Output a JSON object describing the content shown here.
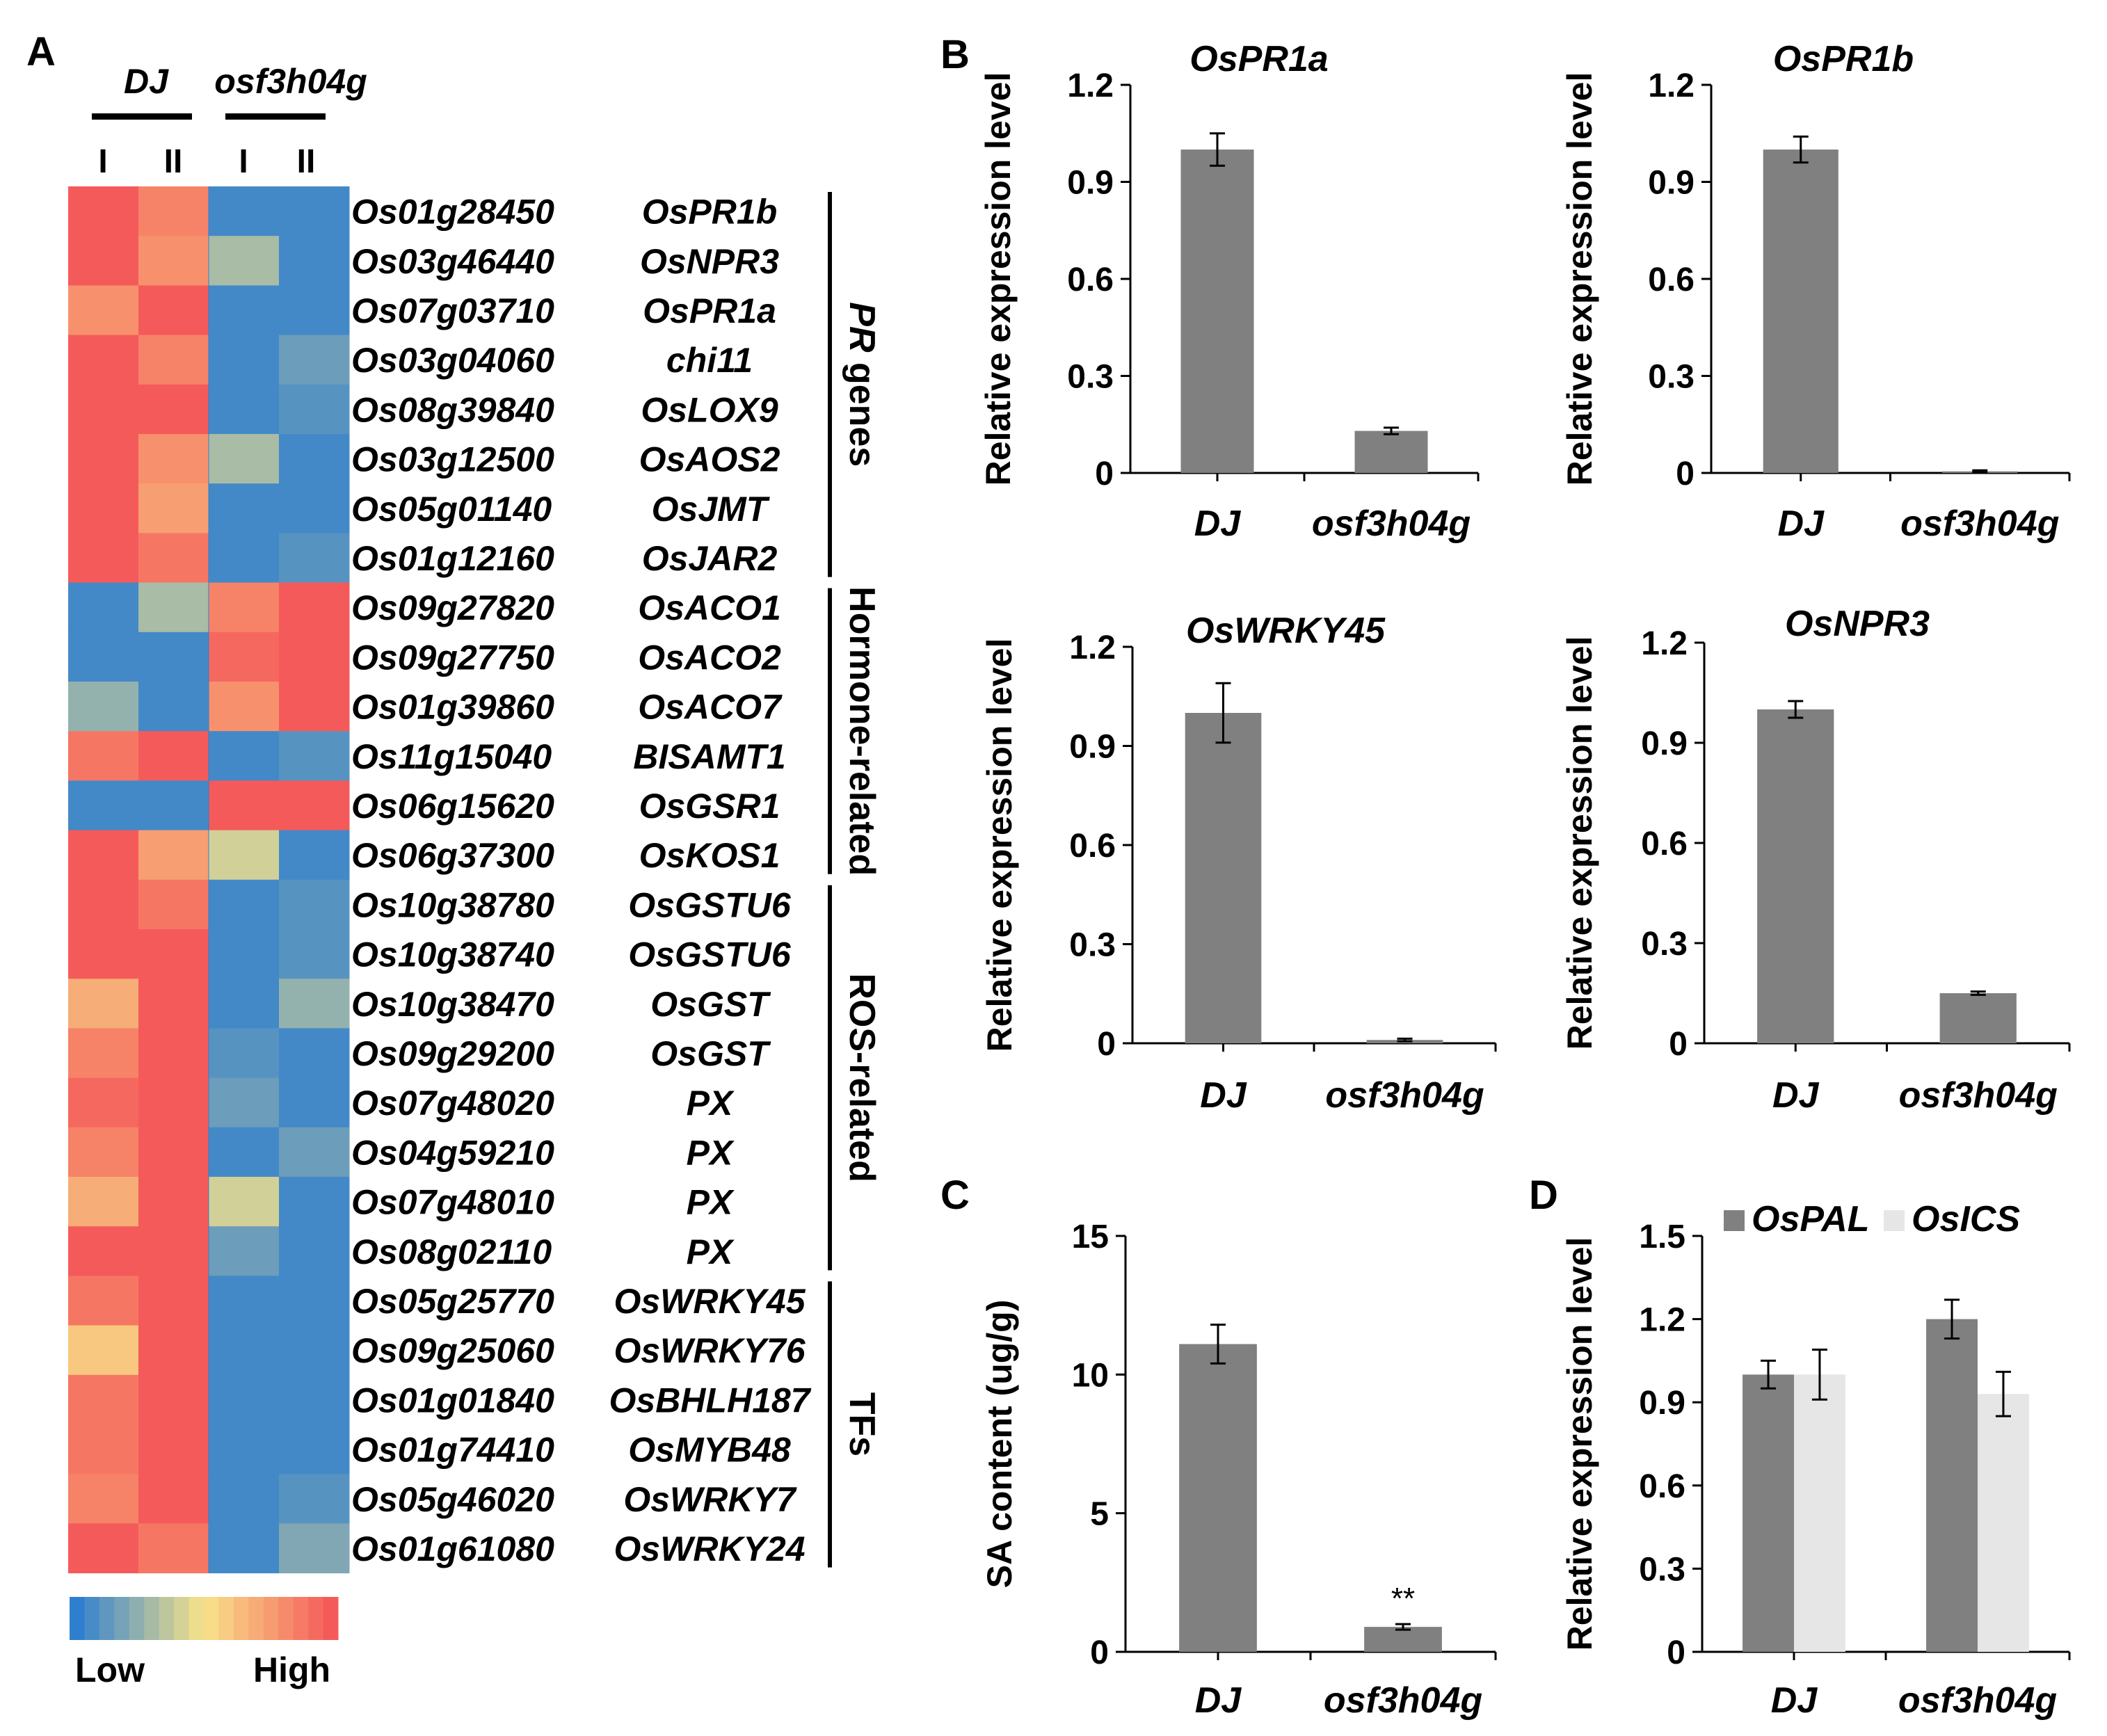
{
  "panel_labels": {
    "a": "A",
    "b": "B",
    "c": "C",
    "d": "D"
  },
  "heatmap": {
    "group_labels": [
      "DJ",
      "osf3h04g"
    ],
    "replicate_labels": [
      "I",
      "II",
      "I",
      "II"
    ],
    "genes": [
      {
        "id": "Os01g28450",
        "name": "OsPR1b"
      },
      {
        "id": "Os03g46440",
        "name": "OsNPR3"
      },
      {
        "id": "Os07g03710",
        "name": "OsPR1a"
      },
      {
        "id": "Os03g04060",
        "name": "chi11"
      },
      {
        "id": "Os08g39840",
        "name": "OsLOX9"
      },
      {
        "id": "Os03g12500",
        "name": "OsAOS2"
      },
      {
        "id": "Os05g01140",
        "name": "OsJMT"
      },
      {
        "id": "Os01g12160",
        "name": "OsJAR2"
      },
      {
        "id": "Os09g27820",
        "name": "OsACO1"
      },
      {
        "id": "Os09g27750",
        "name": "OsACO2"
      },
      {
        "id": "Os01g39860",
        "name": "OsACO7"
      },
      {
        "id": "Os11g15040",
        "name": "BISAMT1"
      },
      {
        "id": "Os06g15620",
        "name": "OsGSR1"
      },
      {
        "id": "Os06g37300",
        "name": "OsKOS1"
      },
      {
        "id": "Os10g38780",
        "name": "OsGSTU6"
      },
      {
        "id": "Os10g38740",
        "name": "OsGSTU6"
      },
      {
        "id": "Os10g38470",
        "name": "OsGST"
      },
      {
        "id": "Os09g29200",
        "name": "OsGST"
      },
      {
        "id": "Os07g48020",
        "name": "PX"
      },
      {
        "id": "Os04g59210",
        "name": "PX"
      },
      {
        "id": "Os07g48010",
        "name": "PX"
      },
      {
        "id": "Os08g02110",
        "name": "PX"
      },
      {
        "id": "Os05g25770",
        "name": "OsWRKY45"
      },
      {
        "id": "Os09g25060",
        "name": "OsWRKY76"
      },
      {
        "id": "Os01g01840",
        "name": "OsBHLH187"
      },
      {
        "id": "Os01g74410",
        "name": "OsMYB48"
      },
      {
        "id": "Os05g46020",
        "name": "OsWRKY7"
      },
      {
        "id": "Os01g61080",
        "name": "OsWRKY24"
      }
    ],
    "values": [
      [
        1.0,
        0.85,
        0.05,
        0.05
      ],
      [
        1.0,
        0.8,
        0.3,
        0.05
      ],
      [
        0.8,
        1.0,
        0.05,
        0.05
      ],
      [
        1.0,
        0.85,
        0.05,
        0.15
      ],
      [
        1.0,
        1.0,
        0.05,
        0.1
      ],
      [
        1.0,
        0.8,
        0.3,
        0.05
      ],
      [
        1.0,
        0.75,
        0.05,
        0.05
      ],
      [
        1.0,
        0.9,
        0.05,
        0.1
      ],
      [
        0.05,
        0.3,
        0.85,
        1.0
      ],
      [
        0.05,
        0.05,
        0.95,
        1.0
      ],
      [
        0.25,
        0.05,
        0.8,
        1.0
      ],
      [
        0.9,
        1.0,
        0.05,
        0.1
      ],
      [
        0.05,
        0.05,
        1.0,
        1.0
      ],
      [
        1.0,
        0.75,
        0.4,
        0.05
      ],
      [
        1.0,
        0.9,
        0.05,
        0.1
      ],
      [
        1.0,
        1.0,
        0.05,
        0.1
      ],
      [
        0.7,
        1.0,
        0.05,
        0.25
      ],
      [
        0.85,
        1.0,
        0.1,
        0.05
      ],
      [
        0.95,
        1.0,
        0.15,
        0.05
      ],
      [
        0.85,
        1.0,
        0.05,
        0.15
      ],
      [
        0.7,
        1.0,
        0.4,
        0.05
      ],
      [
        1.0,
        1.0,
        0.15,
        0.05
      ],
      [
        0.9,
        1.0,
        0.05,
        0.05
      ],
      [
        0.6,
        1.0,
        0.05,
        0.05
      ],
      [
        0.9,
        1.0,
        0.05,
        0.05
      ],
      [
        0.9,
        1.0,
        0.05,
        0.05
      ],
      [
        0.85,
        1.0,
        0.05,
        0.1
      ],
      [
        1.0,
        0.9,
        0.05,
        0.2
      ]
    ],
    "categories": [
      {
        "label": "PR genes",
        "label_italic_part": "PR",
        "label_rest": " genes",
        "start": 0,
        "end": 7
      },
      {
        "label": "Hormone-related",
        "start": 8,
        "end": 13
      },
      {
        "label": "ROS-related",
        "start": 14,
        "end": 21
      },
      {
        "label": "TFs",
        "start": 22,
        "end": 27
      }
    ],
    "legend": {
      "low": "Low",
      "high": "High"
    },
    "colors": {
      "low": "#2f7fcf",
      "mid": "#f9e48a",
      "high": "#f55a5a"
    }
  },
  "chart_data": [
    {
      "type": "bar",
      "panel": "B",
      "title": "OsPR1a",
      "categories": [
        "DJ",
        "osf3h04g"
      ],
      "values": [
        1.0,
        0.13
      ],
      "errors": [
        0.05,
        0.01
      ],
      "ylabel": "Relative expression level",
      "ylim": [
        0,
        1.2
      ],
      "yticks": [
        "0",
        "0.3",
        "0.6",
        "0.9",
        "1.2"
      ],
      "ytick_values": [
        0,
        0.3,
        0.6,
        0.9,
        1.2
      ],
      "color": "#808080"
    },
    {
      "type": "bar",
      "panel": "B",
      "title": "OsPR1b",
      "categories": [
        "DJ",
        "osf3h04g"
      ],
      "values": [
        1.0,
        0.005
      ],
      "errors": [
        0.04,
        0.003
      ],
      "ylabel": "Relative expression level",
      "ylim": [
        0,
        1.2
      ],
      "yticks": [
        "0",
        "0.3",
        "0.6",
        "0.9",
        "1.2"
      ],
      "ytick_values": [
        0,
        0.3,
        0.6,
        0.9,
        1.2
      ],
      "color": "#808080"
    },
    {
      "type": "bar",
      "panel": "B",
      "title": "OsWRKY45",
      "categories": [
        "DJ",
        "osf3h04g"
      ],
      "values": [
        1.0,
        0.01
      ],
      "errors": [
        0.09,
        0.004
      ],
      "ylabel": "Relative expression level",
      "ylim": [
        0,
        1.2
      ],
      "yticks": [
        "0",
        "0.3",
        "0.6",
        "0.9",
        "1.2"
      ],
      "ytick_values": [
        0,
        0.3,
        0.6,
        0.9,
        1.2
      ],
      "color": "#808080"
    },
    {
      "type": "bar",
      "panel": "B",
      "title": "OsNPR3",
      "categories": [
        "DJ",
        "osf3h04g"
      ],
      "values": [
        1.0,
        0.15
      ],
      "errors": [
        0.025,
        0.005
      ],
      "ylabel": "Relative expression level",
      "ylim": [
        0,
        1.2
      ],
      "yticks": [
        "0",
        "0.3",
        "0.6",
        "0.9",
        "1.2"
      ],
      "ytick_values": [
        0,
        0.3,
        0.6,
        0.9,
        1.2
      ],
      "color": "#808080"
    },
    {
      "type": "bar",
      "panel": "C",
      "title": "",
      "categories": [
        "DJ",
        "osf3h04g"
      ],
      "values": [
        11.1,
        0.9
      ],
      "errors": [
        0.7,
        0.1
      ],
      "ylabel": "SA content (ug/g)",
      "ylim": [
        0,
        15
      ],
      "yticks": [
        "0",
        "5",
        "10",
        "15"
      ],
      "ytick_values": [
        0,
        5,
        10,
        15
      ],
      "color": "#808080",
      "annotation": "**"
    },
    {
      "type": "bar",
      "panel": "D",
      "title": "",
      "categories": [
        "DJ",
        "osf3h04g"
      ],
      "series": [
        {
          "name": "OsPAL",
          "values": [
            1.0,
            1.2
          ],
          "errors": [
            0.05,
            0.07
          ],
          "color": "#808080"
        },
        {
          "name": "OsICS",
          "values": [
            1.0,
            0.93
          ],
          "errors": [
            0.09,
            0.08
          ],
          "color": "#e6e6e6"
        }
      ],
      "ylabel": "Relative expression level",
      "ylim": [
        0,
        1.5
      ],
      "yticks": [
        "0",
        "0.3",
        "0.6",
        "0.9",
        "1.2",
        "1.5"
      ],
      "ytick_values": [
        0,
        0.3,
        0.6,
        0.9,
        1.2,
        1.5
      ],
      "legend_position": "top"
    }
  ]
}
